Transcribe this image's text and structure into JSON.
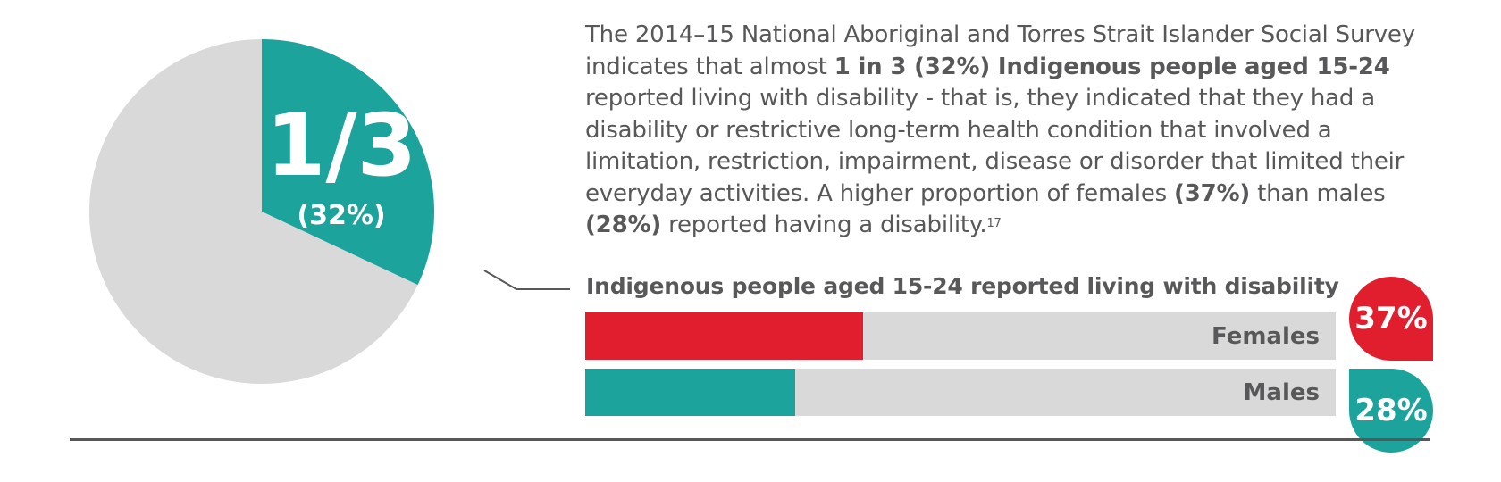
{
  "paragraph": {
    "t1": "The 2014–15 National Aboriginal and Torres Strait Islander Social Survey indicates that almost ",
    "b1": "1 in 3 (32%) Indigenous people aged 15-24",
    "t2": " reported living with disability - that is, they indicated that they had a disability or restrictive long-term health condition that involved a limitation, restriction, impairment, disease or disorder that limited their everyday activities. A higher proportion of females ",
    "b2": "(37%)",
    "t3": " than males ",
    "b3": "(28%)",
    "t4": " reported having a disability.",
    "footnote": "17"
  },
  "chart_data": [
    {
      "type": "pie",
      "slices": [
        {
          "label": "1/3",
          "sublabel": "(32%)",
          "value": 32,
          "color": "#1ba39c"
        },
        {
          "label": "",
          "value": 68,
          "color": "#d9d9d9"
        }
      ],
      "start": "12 o'clock, clockwise"
    },
    {
      "type": "bar",
      "orientation": "horizontal",
      "title": "Indigenous people aged 15-24 reported living with disability",
      "categories": [
        "Females",
        "Males"
      ],
      "values": [
        37,
        28
      ],
      "value_labels": [
        "37%",
        "28%"
      ],
      "colors": [
        "#e01e2e",
        "#1ba39c"
      ],
      "track_color": "#d9d9d9",
      "xlim": [
        0,
        100
      ]
    }
  ],
  "colors": {
    "teal": "#1ba39c",
    "red": "#e01e2e",
    "grey": "#d9d9d9",
    "text": "#58585a"
  }
}
